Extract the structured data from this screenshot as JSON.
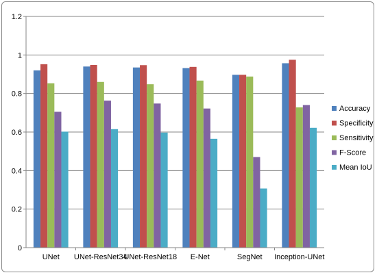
{
  "chart_data": {
    "type": "bar",
    "categories": [
      "UNet",
      "UNet-ResNet34",
      "UNet-ResNet18",
      "E-Net",
      "SegNet",
      "Inception-UNet"
    ],
    "series": [
      {
        "name": "Accuracy",
        "color": "#4f81bd",
        "values": [
          0.92,
          0.94,
          0.935,
          0.932,
          0.897,
          0.957
        ]
      },
      {
        "name": "Specificity",
        "color": "#c0504d",
        "values": [
          0.952,
          0.948,
          0.947,
          0.938,
          0.897,
          0.975
        ]
      },
      {
        "name": "Sensitivity",
        "color": "#9bbb59",
        "values": [
          0.853,
          0.86,
          0.848,
          0.867,
          0.888,
          0.728
        ]
      },
      {
        "name": "F-Score",
        "color": "#8064a2",
        "values": [
          0.705,
          0.763,
          0.748,
          0.722,
          0.47,
          0.74
        ]
      },
      {
        "name": "Mean IoU",
        "color": "#4bacc6",
        "values": [
          0.602,
          0.615,
          0.597,
          0.565,
          0.307,
          0.622
        ]
      }
    ],
    "yticks": [
      "0",
      "0.2",
      "0.4",
      "0.6",
      "0.8",
      "1",
      "1.2"
    ],
    "ylim": [
      0,
      1.2
    ],
    "grid": true,
    "legend_position": "right",
    "title": "",
    "xlabel": "",
    "ylabel": ""
  }
}
